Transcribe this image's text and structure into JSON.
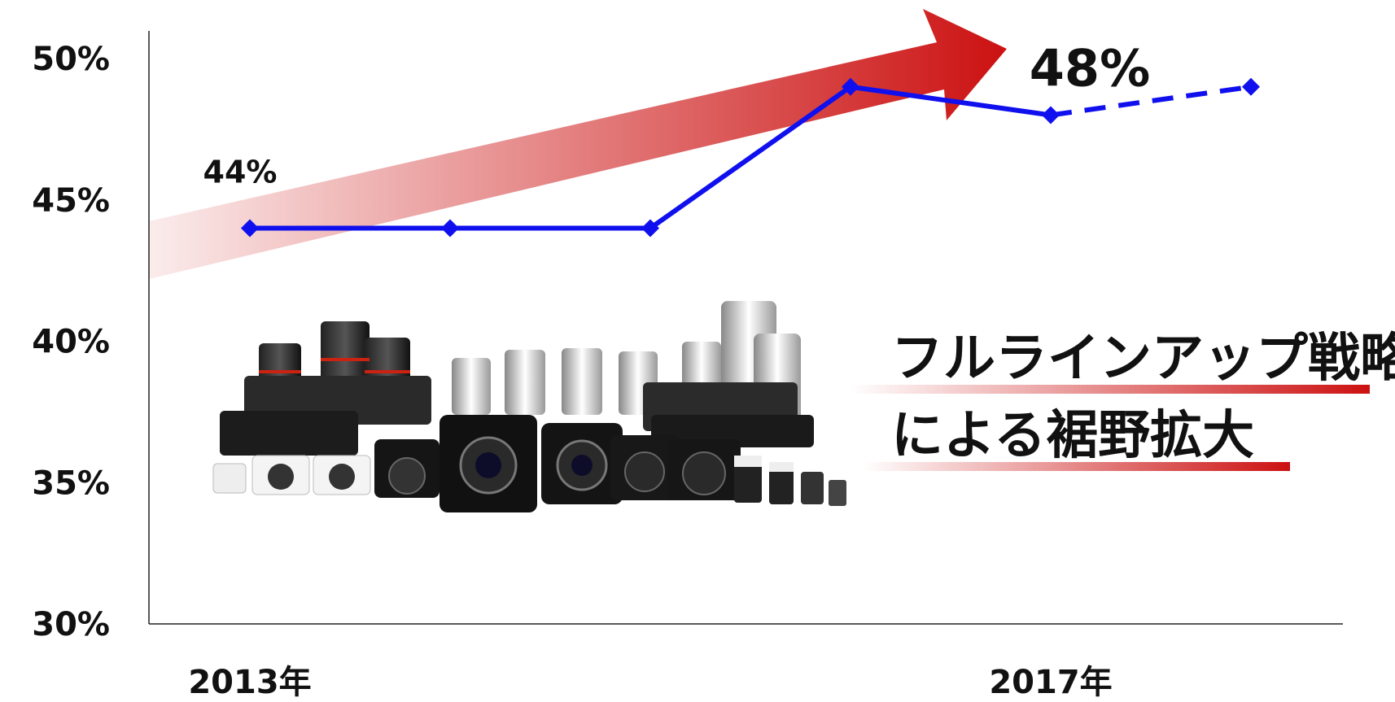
{
  "chart_data": {
    "type": "line",
    "x": [
      "2013年",
      "",
      "",
      "",
      "2017年",
      ""
    ],
    "series": [
      {
        "values": [
          44,
          44,
          44,
          49,
          48,
          49
        ],
        "color": "#1010ee",
        "forecast_from_index": 4
      }
    ],
    "ylim": [
      30,
      50
    ],
    "yticks": [
      "50%",
      "45%",
      "40%",
      "35%",
      "30%"
    ],
    "xticks": [
      "2013年",
      "2017年"
    ],
    "data_labels": [
      {
        "index": 0,
        "text": "44%"
      },
      {
        "index": 4,
        "text": "48%"
      }
    ],
    "annotation": [
      "フルラインアップ戦略",
      "による裾野拡大"
    ],
    "trend_arrow_color": "#cc1111",
    "image": "camera-lineup-photo",
    "grid": false
  }
}
